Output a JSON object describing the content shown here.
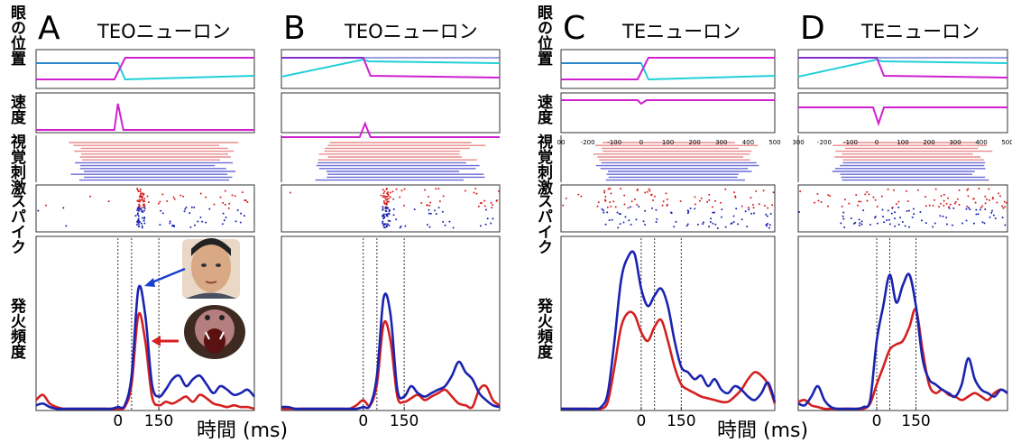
{
  "row_labels": [
    "眼の位置",
    "速度",
    "視覚刺激",
    "スパイク",
    "発火頻度"
  ],
  "chart_data": [
    {
      "type": "line",
      "letter": "A",
      "title": "TEOニューロン",
      "xlabel": "時間 (ms)",
      "xlim": [
        -300,
        500
      ],
      "xticks": [
        0,
        150
      ],
      "event_lines": [
        0,
        50,
        150
      ],
      "ylim": [
        0,
        100
      ],
      "x": [
        -300,
        -275,
        -250,
        -225,
        -200,
        -175,
        -150,
        -125,
        -100,
        -75,
        -50,
        -25,
        0,
        25,
        50,
        75,
        100,
        125,
        150,
        175,
        200,
        225,
        250,
        275,
        300,
        325,
        350,
        375,
        400,
        425,
        450,
        475,
        500
      ],
      "series": [
        {
          "color": "#1a23b0",
          "values": [
            3,
            4,
            2,
            1,
            1,
            1,
            1,
            1,
            1,
            1,
            1,
            1,
            2,
            3,
            20,
            70,
            55,
            15,
            8,
            12,
            18,
            20,
            14,
            18,
            20,
            15,
            10,
            14,
            12,
            9,
            10,
            12,
            8
          ]
        },
        {
          "color": "#d42020",
          "values": [
            6,
            9,
            4,
            2,
            1,
            1,
            1,
            1,
            1,
            1,
            1,
            1,
            1,
            2,
            15,
            55,
            40,
            8,
            3,
            5,
            4,
            6,
            8,
            5,
            9,
            7,
            4,
            3,
            2,
            3,
            2,
            2,
            1
          ]
        }
      ]
    },
    {
      "type": "line",
      "letter": "B",
      "title": "TEOニューロン",
      "xlim": [
        -300,
        500
      ],
      "xticks": [
        0,
        150
      ],
      "event_lines": [
        0,
        50,
        150
      ],
      "ylim": [
        0,
        100
      ],
      "x": [
        -300,
        -275,
        -250,
        -225,
        -200,
        -175,
        -150,
        -125,
        -100,
        -75,
        -50,
        -25,
        0,
        25,
        50,
        75,
        100,
        125,
        150,
        175,
        200,
        225,
        250,
        275,
        300,
        325,
        350,
        375,
        400,
        425,
        450,
        475,
        500
      ],
      "series": [
        {
          "color": "#1a23b0",
          "values": [
            2,
            2,
            1,
            1,
            1,
            1,
            1,
            1,
            1,
            1,
            1,
            1,
            2,
            3,
            20,
            65,
            55,
            12,
            8,
            14,
            10,
            8,
            10,
            12,
            14,
            20,
            28,
            22,
            18,
            10,
            6,
            3,
            2
          ]
        },
        {
          "color": "#d42020",
          "values": [
            1,
            1,
            1,
            1,
            1,
            1,
            1,
            1,
            1,
            1,
            1,
            3,
            6,
            3,
            15,
            50,
            40,
            8,
            5,
            7,
            9,
            6,
            8,
            10,
            12,
            8,
            4,
            3,
            2,
            12,
            14,
            6,
            3
          ]
        }
      ]
    },
    {
      "type": "line",
      "letter": "C",
      "title": "TEニューロン",
      "xlabel": "時間 (ms)",
      "xlim": [
        -300,
        500
      ],
      "xticks": [
        0,
        150
      ],
      "event_lines": [
        0,
        50,
        150
      ],
      "ylim": [
        0,
        100
      ],
      "stim_ticks": [
        {
          "value": -300,
          "label": "00"
        },
        -200,
        -100,
        0,
        100,
        200,
        300,
        400,
        500
      ],
      "x": [
        -300,
        -275,
        -250,
        -225,
        -200,
        -175,
        -150,
        -125,
        -100,
        -75,
        -50,
        -25,
        0,
        25,
        50,
        75,
        100,
        125,
        150,
        175,
        200,
        225,
        250,
        275,
        300,
        325,
        350,
        375,
        400,
        425,
        450,
        475,
        500
      ],
      "series": [
        {
          "color": "#1a23b0",
          "values": [
            1,
            1,
            1,
            1,
            1,
            1,
            2,
            10,
            40,
            75,
            88,
            90,
            70,
            60,
            66,
            70,
            60,
            40,
            25,
            22,
            18,
            20,
            14,
            18,
            12,
            10,
            14,
            12,
            8,
            6,
            10,
            16,
            5
          ]
        },
        {
          "color": "#d42020",
          "values": [
            1,
            1,
            1,
            1,
            1,
            1,
            1,
            5,
            25,
            48,
            56,
            55,
            45,
            40,
            48,
            52,
            40,
            25,
            15,
            12,
            10,
            8,
            7,
            6,
            5,
            5,
            8,
            12,
            18,
            22,
            20,
            15,
            4
          ]
        }
      ]
    },
    {
      "type": "line",
      "letter": "D",
      "title": "TEニューロン",
      "xlim": [
        -300,
        500
      ],
      "xticks": [
        0,
        150
      ],
      "event_lines": [
        0,
        50,
        150
      ],
      "ylim": [
        0,
        100
      ],
      "stim_ticks": [
        {
          "value": -300,
          "label": "300"
        },
        -200,
        -100,
        0,
        100,
        200,
        300,
        400,
        500
      ],
      "x": [
        -300,
        -275,
        -250,
        -225,
        -200,
        -175,
        -150,
        -125,
        -100,
        -75,
        -50,
        -25,
        0,
        25,
        50,
        75,
        100,
        125,
        150,
        175,
        200,
        225,
        250,
        275,
        300,
        325,
        350,
        375,
        400,
        425,
        450,
        475,
        500
      ],
      "series": [
        {
          "color": "#1a23b0",
          "values": [
            4,
            3,
            8,
            14,
            6,
            2,
            1,
            1,
            1,
            1,
            2,
            6,
            40,
            60,
            78,
            62,
            72,
            78,
            60,
            30,
            18,
            15,
            12,
            10,
            8,
            15,
            30,
            18,
            12,
            10,
            8,
            12,
            10
          ]
        },
        {
          "color": "#d42020",
          "values": [
            5,
            6,
            3,
            2,
            1,
            1,
            1,
            1,
            1,
            1,
            1,
            4,
            15,
            25,
            35,
            38,
            40,
            48,
            58,
            35,
            15,
            10,
            12,
            9,
            8,
            6,
            8,
            10,
            8,
            6,
            10,
            12,
            10
          ]
        }
      ]
    }
  ]
}
